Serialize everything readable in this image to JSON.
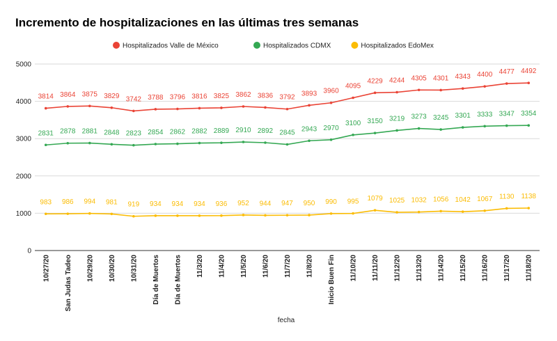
{
  "chart_data": {
    "type": "line",
    "title": "Incremento de hospitalizaciones en las últimas tres semanas",
    "xlabel": "fecha",
    "ylabel": "",
    "ylim": [
      0,
      5000
    ],
    "yticks": [
      "0",
      "1000",
      "2000",
      "3000",
      "4000",
      "5000"
    ],
    "grid": true,
    "legend_position": "top",
    "categories": [
      "10/27/20",
      "San Judas Tadeo",
      "10/29/20",
      "10/30/20",
      "10/31/20",
      "Día de Muertos",
      "Día de Muertos",
      "11/3/20",
      "11/4/20",
      "11/5/20",
      "11/6/20",
      "11/7/20",
      "11/8/20",
      "Inicio Buen Fin",
      "11/10/20",
      "11/11/20",
      "11/12/20",
      "11/13/20",
      "11/14/20",
      "11/15/20",
      "11/16/20",
      "11/17/20",
      "11/18/20"
    ],
    "series": [
      {
        "name": "Hospitalizados Valle de México",
        "color": "#ea4335",
        "values": [
          3814,
          3864,
          3875,
          3829,
          3742,
          3788,
          3796,
          3816,
          3825,
          3862,
          3836,
          3792,
          3893,
          3960,
          4095,
          4229,
          4244,
          4305,
          4301,
          4343,
          4400,
          4477,
          4492
        ]
      },
      {
        "name": "Hospitalizados CDMX",
        "color": "#34a853",
        "values": [
          2831,
          2878,
          2881,
          2848,
          2823,
          2854,
          2862,
          2882,
          2889,
          2910,
          2892,
          2845,
          2943,
          2970,
          3100,
          3150,
          3219,
          3273,
          3245,
          3301,
          3333,
          3347,
          3354
        ]
      },
      {
        "name": "Hospitalizados EdoMex",
        "color": "#fbbc04",
        "values": [
          983,
          986,
          994,
          981,
          919,
          934,
          934,
          934,
          936,
          952,
          944,
          947,
          950,
          990,
          995,
          1079,
          1025,
          1032,
          1056,
          1042,
          1067,
          1130,
          1138
        ]
      }
    ]
  }
}
